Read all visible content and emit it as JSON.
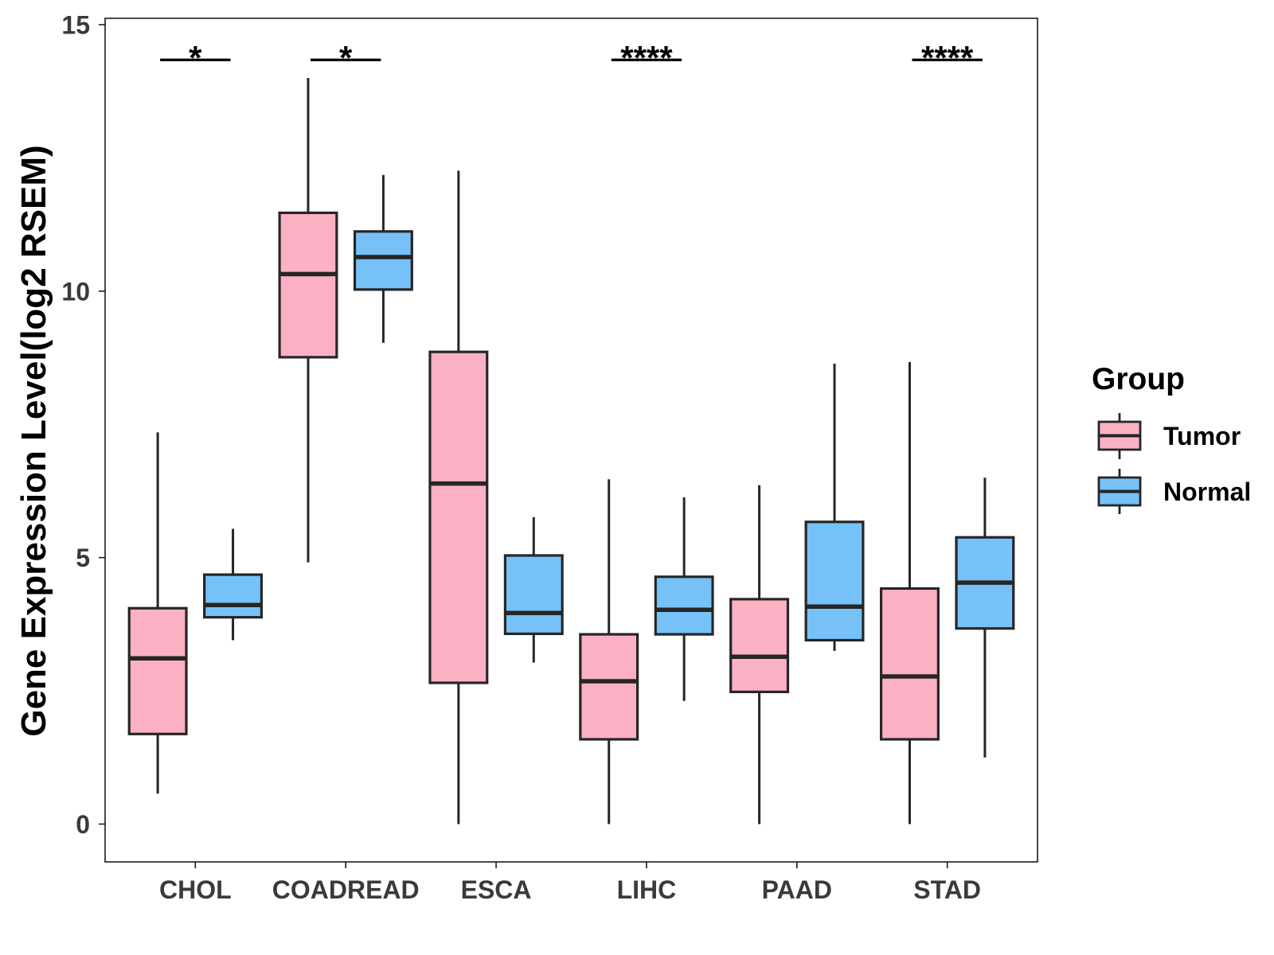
{
  "chart_data": {
    "type": "box",
    "title": "",
    "xlabel": "",
    "ylabel": "Gene Expression Level(log2 RSEM)",
    "ylim": [
      -0.71,
      15.12
    ],
    "yticks": [
      0,
      5,
      10,
      15
    ],
    "grid": false,
    "categories": [
      "CHOL",
      "COADREAD",
      "ESCA",
      "LIHC",
      "PAAD",
      "STAD"
    ],
    "legend": {
      "title": "Group",
      "position": "right"
    },
    "series": [
      {
        "name": "Tumor",
        "color": "#FCB0C3",
        "boxes": [
          {
            "min": 0.57,
            "q1": 1.69,
            "median": 3.11,
            "q3": 4.05,
            "max": 7.35
          },
          {
            "min": 4.91,
            "q1": 8.76,
            "median": 10.32,
            "q3": 11.47,
            "max": 14.0
          },
          {
            "min": 0.0,
            "q1": 2.65,
            "median": 6.39,
            "q3": 8.86,
            "max": 12.26
          },
          {
            "min": 0.0,
            "q1": 1.59,
            "median": 2.68,
            "q3": 3.56,
            "max": 6.47
          },
          {
            "min": 0.0,
            "q1": 2.48,
            "median": 3.14,
            "q3": 4.22,
            "max": 6.36
          },
          {
            "min": 0.0,
            "q1": 1.59,
            "median": 2.77,
            "q3": 4.42,
            "max": 8.67
          }
        ]
      },
      {
        "name": "Normal",
        "color": "#76C1F8",
        "boxes": [
          {
            "min": 3.45,
            "q1": 3.88,
            "median": 4.11,
            "q3": 4.68,
            "max": 5.54
          },
          {
            "min": 9.03,
            "q1": 10.03,
            "median": 10.64,
            "q3": 11.12,
            "max": 12.18
          },
          {
            "min": 3.03,
            "q1": 3.57,
            "median": 3.96,
            "q3": 5.04,
            "max": 5.76
          },
          {
            "min": 2.31,
            "q1": 3.56,
            "median": 4.02,
            "q3": 4.64,
            "max": 6.13
          },
          {
            "min": 3.25,
            "q1": 3.45,
            "median": 4.08,
            "q3": 5.67,
            "max": 8.64
          },
          {
            "min": 1.25,
            "q1": 3.67,
            "median": 4.53,
            "q3": 5.38,
            "max": 6.5
          }
        ]
      }
    ],
    "significance": [
      "*",
      "*",
      null,
      "****",
      null,
      "****"
    ],
    "significance_bar_y": 14.34
  },
  "colors": {
    "box_outline": "#262626",
    "axis_line": "#1A1A1A",
    "significance": "#000000"
  }
}
